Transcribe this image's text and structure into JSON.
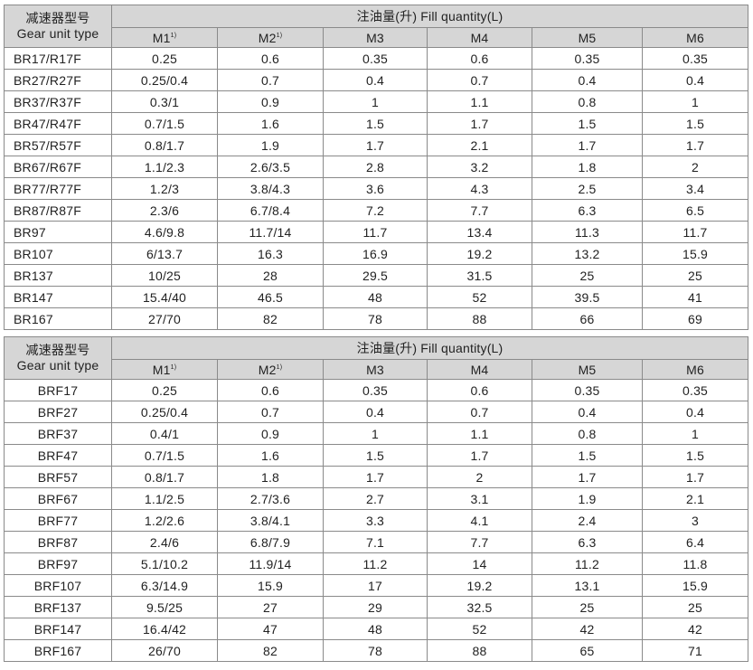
{
  "tables": [
    {
      "type_header_cn": "减速器型号",
      "type_header_en": "Gear unit type",
      "group_header": "注油量(升) Fill quantity(L)",
      "columns": [
        {
          "label": "M1",
          "sup": "1)"
        },
        {
          "label": "M2",
          "sup": "1)"
        },
        {
          "label": "M3",
          "sup": ""
        },
        {
          "label": "M4",
          "sup": ""
        },
        {
          "label": "M5",
          "sup": ""
        },
        {
          "label": "M6",
          "sup": ""
        }
      ],
      "rows": [
        {
          "type": "BR17/R17F",
          "values": [
            "0.25",
            "0.6",
            "0.35",
            "0.6",
            "0.35",
            "0.35"
          ]
        },
        {
          "type": "BR27/R27F",
          "values": [
            "0.25/0.4",
            "0.7",
            "0.4",
            "0.7",
            "0.4",
            "0.4"
          ]
        },
        {
          "type": "BR37/R37F",
          "values": [
            "0.3/1",
            "0.9",
            "1",
            "1.1",
            "0.8",
            "1"
          ]
        },
        {
          "type": "BR47/R47F",
          "values": [
            "0.7/1.5",
            "1.6",
            "1.5",
            "1.7",
            "1.5",
            "1.5"
          ]
        },
        {
          "type": "BR57/R57F",
          "values": [
            "0.8/1.7",
            "1.9",
            "1.7",
            "2.1",
            "1.7",
            "1.7"
          ]
        },
        {
          "type": "BR67/R67F",
          "values": [
            "1.1/2.3",
            "2.6/3.5",
            "2.8",
            "3.2",
            "1.8",
            "2"
          ]
        },
        {
          "type": "BR77/R77F",
          "values": [
            "1.2/3",
            "3.8/4.3",
            "3.6",
            "4.3",
            "2.5",
            "3.4"
          ]
        },
        {
          "type": "BR87/R87F",
          "values": [
            "2.3/6",
            "6.7/8.4",
            "7.2",
            "7.7",
            "6.3",
            "6.5"
          ]
        },
        {
          "type": "BR97",
          "values": [
            "4.6/9.8",
            "11.7/14",
            "11.7",
            "13.4",
            "11.3",
            "11.7"
          ]
        },
        {
          "type": "BR107",
          "values": [
            "6/13.7",
            "16.3",
            "16.9",
            "19.2",
            "13.2",
            "15.9"
          ]
        },
        {
          "type": "BR137",
          "values": [
            "10/25",
            "28",
            "29.5",
            "31.5",
            "25",
            "25"
          ]
        },
        {
          "type": "BR147",
          "values": [
            "15.4/40",
            "46.5",
            "48",
            "52",
            "39.5",
            "41"
          ]
        },
        {
          "type": "BR167",
          "values": [
            "27/70",
            "82",
            "78",
            "88",
            "66",
            "69"
          ]
        }
      ]
    },
    {
      "type_header_cn": "减速器型号",
      "type_header_en": "Gear unit type",
      "group_header": "注油量(升) Fill quantity(L)",
      "columns": [
        {
          "label": "M1",
          "sup": "1)"
        },
        {
          "label": "M2",
          "sup": "1)"
        },
        {
          "label": "M3",
          "sup": ""
        },
        {
          "label": "M4",
          "sup": ""
        },
        {
          "label": "M5",
          "sup": ""
        },
        {
          "label": "M6",
          "sup": ""
        }
      ],
      "rows": [
        {
          "type": "BRF17",
          "values": [
            "0.25",
            "0.6",
            "0.35",
            "0.6",
            "0.35",
            "0.35"
          ]
        },
        {
          "type": "BRF27",
          "values": [
            "0.25/0.4",
            "0.7",
            "0.4",
            "0.7",
            "0.4",
            "0.4"
          ]
        },
        {
          "type": "BRF37",
          "values": [
            "0.4/1",
            "0.9",
            "1",
            "1.1",
            "0.8",
            "1"
          ]
        },
        {
          "type": "BRF47",
          "values": [
            "0.7/1.5",
            "1.6",
            "1.5",
            "1.7",
            "1.5",
            "1.5"
          ]
        },
        {
          "type": "BRF57",
          "values": [
            "0.8/1.7",
            "1.8",
            "1.7",
            "2",
            "1.7",
            "1.7"
          ]
        },
        {
          "type": "BRF67",
          "values": [
            "1.1/2.5",
            "2.7/3.6",
            "2.7",
            "3.1",
            "1.9",
            "2.1"
          ]
        },
        {
          "type": "BRF77",
          "values": [
            "1.2/2.6",
            "3.8/4.1",
            "3.3",
            "4.1",
            "2.4",
            "3"
          ]
        },
        {
          "type": "BRF87",
          "values": [
            "2.4/6",
            "6.8/7.9",
            "7.1",
            "7.7",
            "6.3",
            "6.4"
          ]
        },
        {
          "type": "BRF97",
          "values": [
            "5.1/10.2",
            "11.9/14",
            "11.2",
            "14",
            "11.2",
            "11.8"
          ]
        },
        {
          "type": "BRF107",
          "values": [
            "6.3/14.9",
            "15.9",
            "17",
            "19.2",
            "13.1",
            "15.9"
          ]
        },
        {
          "type": "BRF137",
          "values": [
            "9.5/25",
            "27",
            "29",
            "32.5",
            "25",
            "25"
          ]
        },
        {
          "type": "BRF147",
          "values": [
            "16.4/42",
            "47",
            "48",
            "52",
            "42",
            "42"
          ]
        },
        {
          "type": "BRF167",
          "values": [
            "26/70",
            "82",
            "78",
            "88",
            "65",
            "71"
          ]
        }
      ]
    }
  ]
}
